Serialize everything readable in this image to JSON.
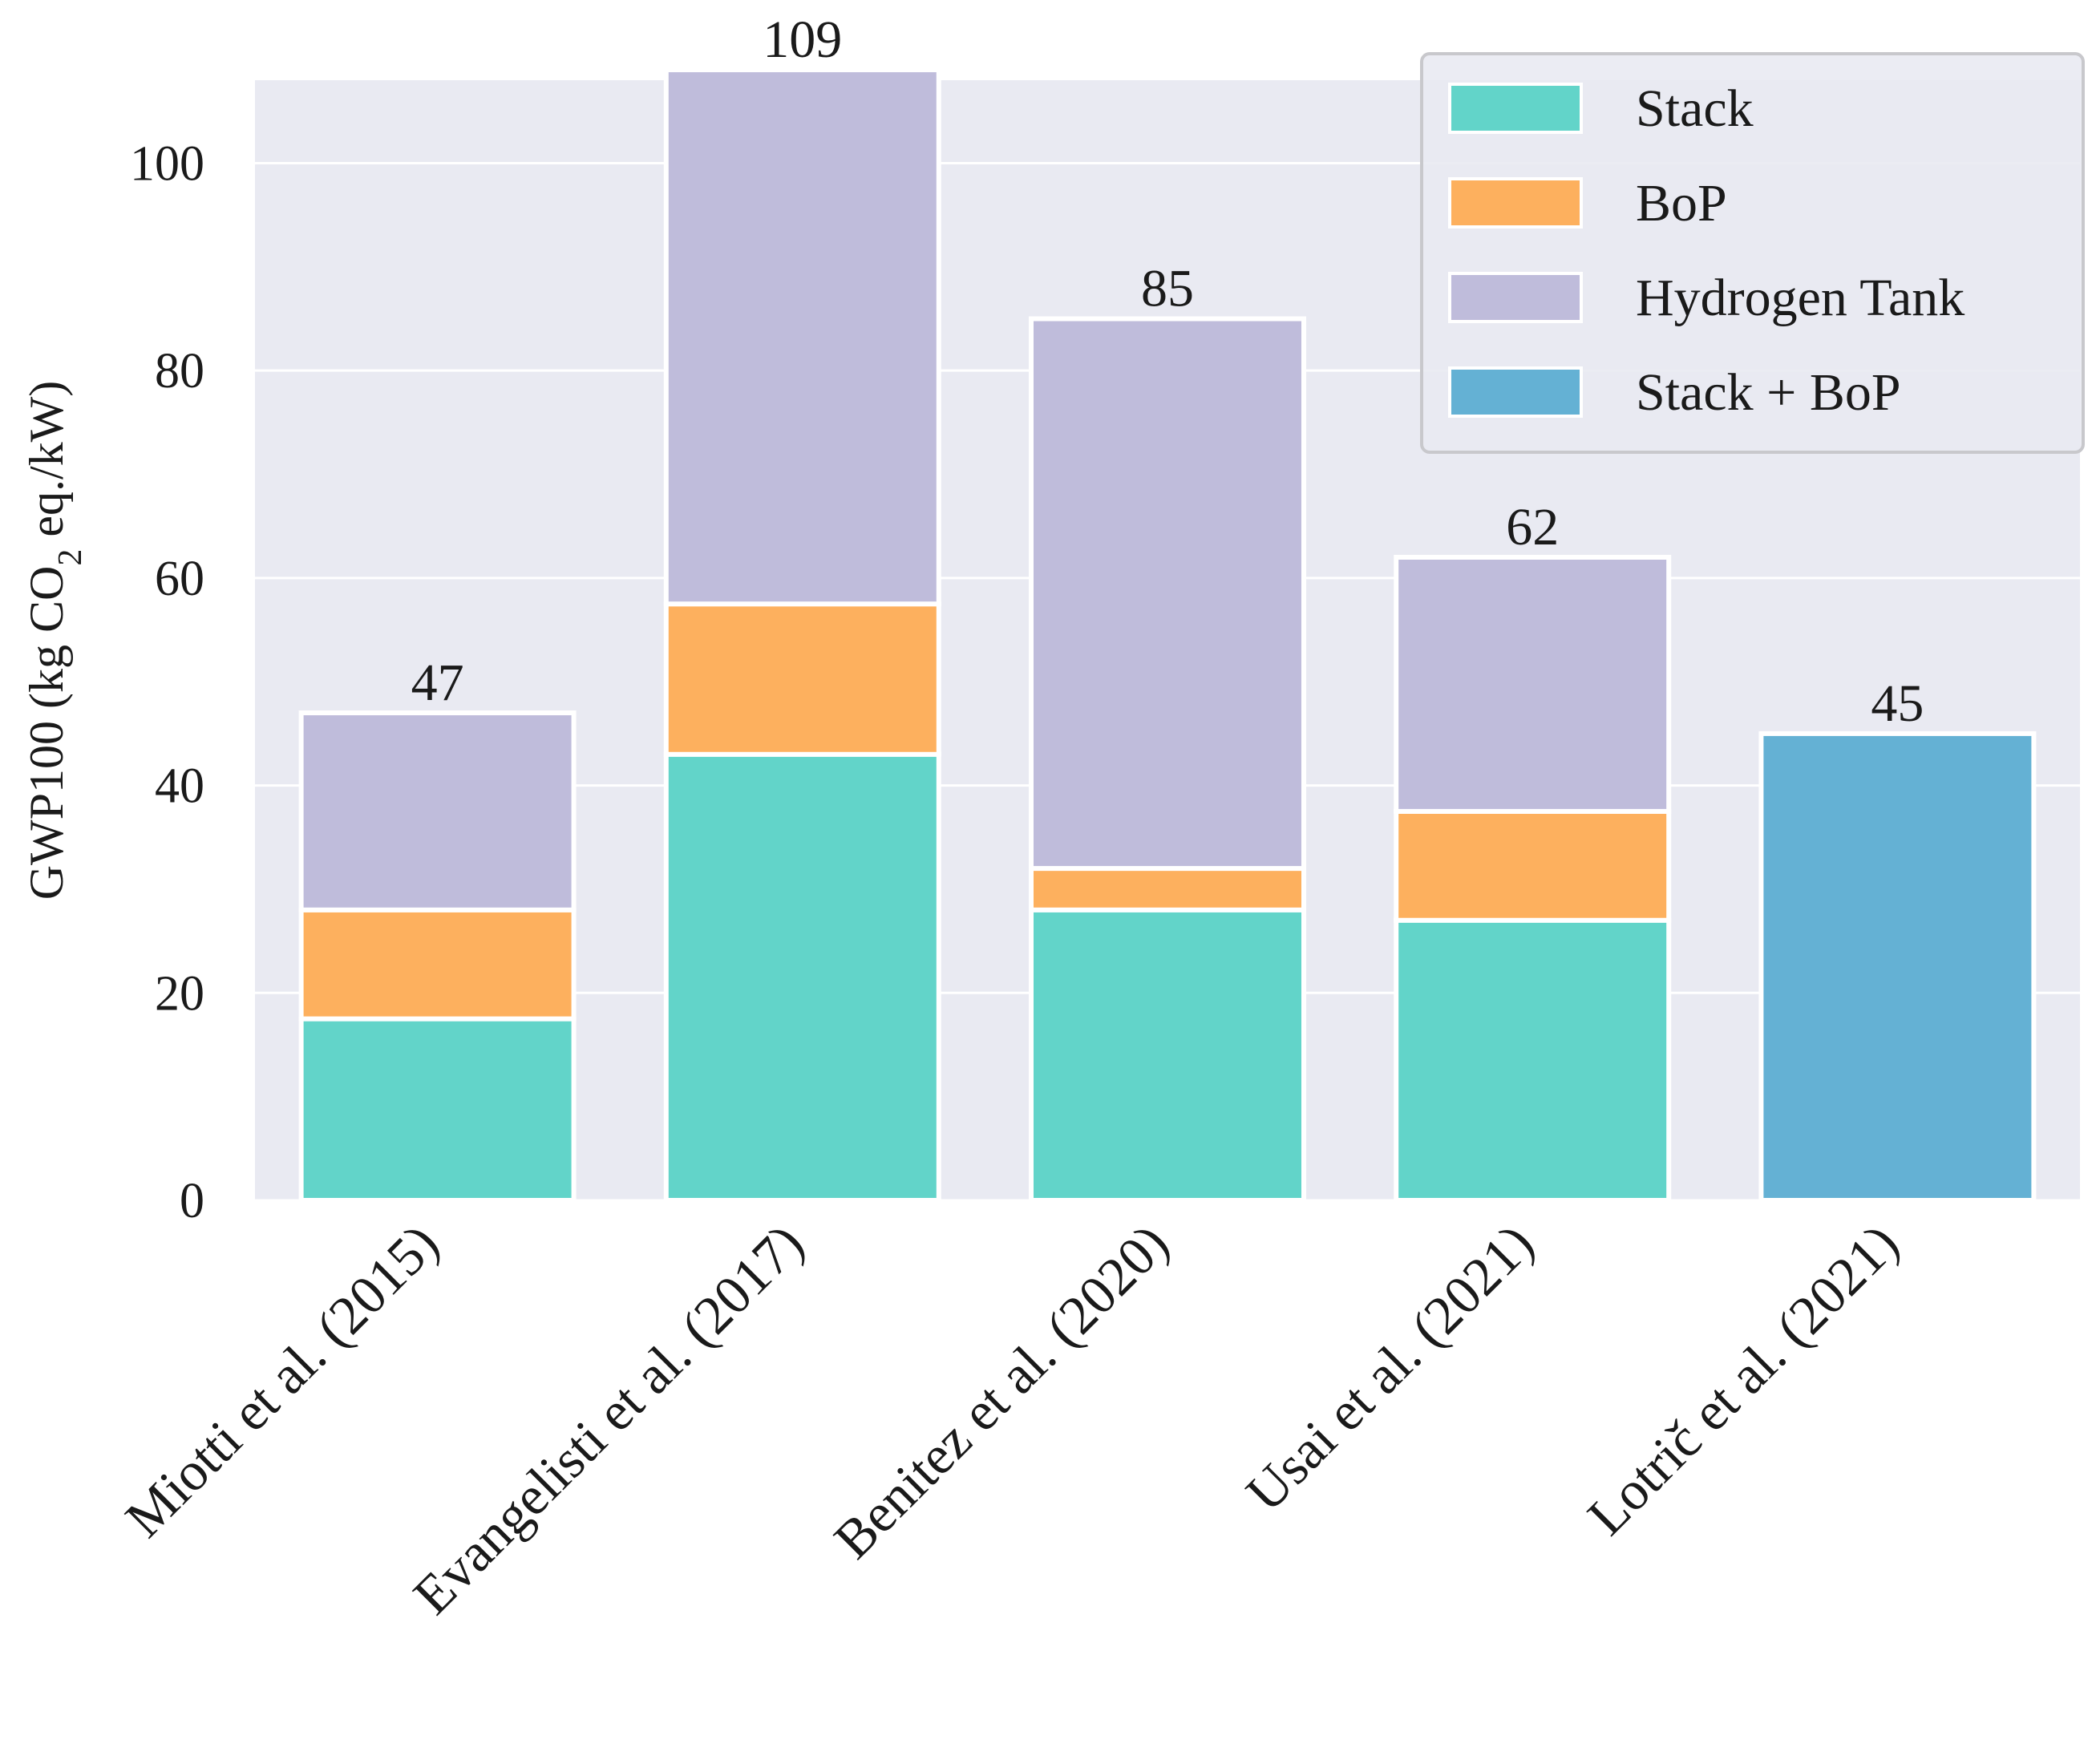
{
  "chart_data": {
    "type": "bar",
    "stacked": true,
    "categories": [
      "Miotti et al. (2015)",
      "Evangelisti et al. (2017)",
      "Benitez et al. (2020)",
      "Usai et al. (2021)",
      "Lotrič et al. (2021)"
    ],
    "series": [
      {
        "name": "Stack",
        "color": "#62d4c9",
        "values": [
          17.5,
          43,
          28,
          27,
          0
        ]
      },
      {
        "name": "BoP",
        "color": "#fdb05e",
        "values": [
          10.5,
          14.5,
          4,
          10.5,
          0
        ]
      },
      {
        "name": "Hydrogen Tank",
        "color": "#bfbcdb",
        "values": [
          19,
          51.5,
          53,
          24.5,
          0
        ]
      },
      {
        "name": "Stack + BoP",
        "color": "#64b1d4",
        "values": [
          0,
          0,
          0,
          0,
          45
        ]
      }
    ],
    "totals": [
      "47",
      "109",
      "85",
      "62",
      "45"
    ],
    "ylabel_main": "GWP100 (kg CO",
    "ylabel_sub": "2",
    "ylabel_end": " eq./kW)",
    "ylim": [
      0,
      108
    ],
    "yticks": [
      0,
      20,
      40,
      60,
      80,
      100
    ],
    "grid": true,
    "legend_position": "top-right"
  }
}
